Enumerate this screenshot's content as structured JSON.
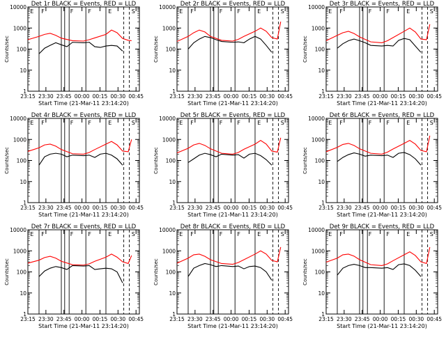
{
  "chart_data": [
    {
      "type": "line",
      "title": "Det 1r BLACK = Events, RED = LLD",
      "xlabel": "Start Time (21-Mar-11 23:14:20)",
      "ylabel": "Counts/sec",
      "yscale": "log",
      "ylim": [
        1,
        10000
      ],
      "xticks": [
        "23:15",
        "23:30",
        "23:45",
        "00:00",
        "00:15",
        "00:30",
        "00:45"
      ],
      "ytick_labels": [
        "1",
        "10",
        "100",
        "1000",
        "10000"
      ],
      "markers": [
        "E",
        "F",
        "F",
        "F",
        "E",
        "S"
      ],
      "series": [
        {
          "color": "#ff0000",
          "x": [
            0,
            0.1,
            0.15,
            0.2,
            0.25,
            0.3,
            0.4,
            0.5,
            0.55,
            0.6,
            0.7,
            0.75,
            0.8,
            0.85,
            0.9,
            0.93
          ],
          "y": [
            280,
            400,
            500,
            560,
            450,
            330,
            250,
            240,
            280,
            340,
            500,
            800,
            600,
            320,
            260,
            250
          ]
        },
        {
          "color": "#000000",
          "x": [
            0.1,
            0.15,
            0.2,
            0.25,
            0.3,
            0.35,
            0.4,
            0.5,
            0.55,
            0.6,
            0.65,
            0.7,
            0.75,
            0.8,
            0.85
          ],
          "y": [
            60,
            110,
            150,
            200,
            160,
            130,
            210,
            200,
            210,
            130,
            120,
            140,
            150,
            140,
            80
          ]
        }
      ]
    },
    {
      "type": "line",
      "title": "Det 2r BLACK = Events, RED = LLD",
      "xlabel": "Start Time (21-Mar-11 23:14:20)",
      "ylabel": "Counts/sec",
      "yscale": "log",
      "ylim": [
        1,
        10000
      ],
      "xticks": [
        "23:15",
        "23:30",
        "23:45",
        "00:00",
        "00:15",
        "00:30",
        "00:45"
      ],
      "ytick_labels": [
        "1",
        "10",
        "100",
        "1000",
        "10000"
      ],
      "markers": [
        "E",
        "F",
        "F",
        "F",
        "E",
        "S"
      ],
      "series": [
        {
          "color": "#ff0000",
          "x": [
            0,
            0.1,
            0.15,
            0.2,
            0.25,
            0.3,
            0.4,
            0.5,
            0.55,
            0.6,
            0.7,
            0.75,
            0.8,
            0.85,
            0.9,
            0.93
          ],
          "y": [
            230,
            400,
            600,
            800,
            650,
            400,
            260,
            240,
            290,
            400,
            700,
            1000,
            700,
            350,
            300,
            2000
          ]
        },
        {
          "color": "#000000",
          "x": [
            0.1,
            0.15,
            0.2,
            0.25,
            0.3,
            0.35,
            0.4,
            0.5,
            0.55,
            0.6,
            0.65,
            0.7,
            0.75,
            0.8,
            0.85
          ],
          "y": [
            100,
            200,
            300,
            400,
            350,
            280,
            230,
            210,
            220,
            200,
            300,
            400,
            300,
            150,
            70
          ]
        }
      ]
    },
    {
      "type": "line",
      "title": "Det 3r BLACK = Events, RED = LLD",
      "xlabel": "Start Time (21-Mar-11 23:14:20)",
      "ylabel": "Counts/sec",
      "yscale": "log",
      "ylim": [
        1,
        10000
      ],
      "xticks": [
        "23:15",
        "23:30",
        "23:45",
        "00:00",
        "00:15",
        "00:30",
        "00:45"
      ],
      "ytick_labels": [
        "1",
        "10",
        "100",
        "1000",
        "10000"
      ],
      "markers": [
        "E",
        "F",
        "F",
        "F",
        "E",
        "S"
      ],
      "series": [
        {
          "color": "#ff0000",
          "x": [
            0,
            0.1,
            0.15,
            0.2,
            0.25,
            0.3,
            0.4,
            0.5,
            0.55,
            0.6,
            0.7,
            0.75,
            0.8,
            0.85,
            0.9,
            0.93
          ],
          "y": [
            250,
            450,
            600,
            700,
            550,
            380,
            220,
            200,
            250,
            350,
            700,
            1000,
            650,
            300,
            280,
            1500
          ]
        },
        {
          "color": "#000000",
          "x": [
            0.1,
            0.15,
            0.2,
            0.25,
            0.3,
            0.35,
            0.4,
            0.5,
            0.55,
            0.6,
            0.65,
            0.7,
            0.75,
            0.8,
            0.85
          ],
          "y": [
            110,
            180,
            250,
            300,
            250,
            200,
            150,
            140,
            150,
            140,
            260,
            320,
            280,
            140,
            70
          ]
        }
      ]
    },
    {
      "type": "line",
      "title": "Det 4r BLACK = Events, RED = LLD",
      "xlabel": "Start Time (21-Mar-11 23:14:20)",
      "ylabel": "Counts/sec",
      "yscale": "log",
      "ylim": [
        1,
        10000
      ],
      "xticks": [
        "23:15",
        "23:30",
        "23:45",
        "00:00",
        "00:15",
        "00:30",
        "00:45"
      ],
      "ytick_labels": [
        "1",
        "10",
        "100",
        "1000",
        "10000"
      ],
      "markers": [
        "E",
        "F",
        "F",
        "F",
        "E",
        "S"
      ],
      "series": [
        {
          "color": "#ff0000",
          "x": [
            0,
            0.1,
            0.15,
            0.2,
            0.25,
            0.3,
            0.4,
            0.5,
            0.55,
            0.6,
            0.7,
            0.75,
            0.8,
            0.85,
            0.9,
            0.93
          ],
          "y": [
            270,
            400,
            550,
            600,
            480,
            330,
            210,
            200,
            240,
            330,
            600,
            800,
            550,
            280,
            260,
            1000
          ]
        },
        {
          "color": "#000000",
          "x": [
            0.1,
            0.15,
            0.2,
            0.25,
            0.3,
            0.35,
            0.4,
            0.5,
            0.55,
            0.6,
            0.65,
            0.7,
            0.75,
            0.8,
            0.85
          ],
          "y": [
            60,
            150,
            200,
            220,
            200,
            150,
            180,
            170,
            180,
            140,
            200,
            220,
            180,
            120,
            60
          ]
        }
      ]
    },
    {
      "type": "line",
      "title": "Det 5r BLACK = Events, RED = LLD",
      "xlabel": "Start Time (21-Mar-11 23:14:20)",
      "ylabel": "Counts/sec",
      "yscale": "log",
      "ylim": [
        1,
        10000
      ],
      "xticks": [
        "23:15",
        "23:30",
        "23:45",
        "00:00",
        "00:15",
        "00:30",
        "00:45"
      ],
      "ytick_labels": [
        "1",
        "10",
        "100",
        "1000",
        "10000"
      ],
      "markers": [
        "E",
        "F",
        "F",
        "F",
        "E",
        "S"
      ],
      "series": [
        {
          "color": "#ff0000",
          "x": [
            0,
            0.1,
            0.15,
            0.2,
            0.25,
            0.3,
            0.4,
            0.5,
            0.55,
            0.6,
            0.7,
            0.75,
            0.8,
            0.85,
            0.9,
            0.93
          ],
          "y": [
            230,
            380,
            550,
            650,
            520,
            360,
            220,
            200,
            240,
            340,
            600,
            900,
            600,
            280,
            250,
            1200
          ]
        },
        {
          "color": "#000000",
          "x": [
            0.1,
            0.15,
            0.2,
            0.25,
            0.3,
            0.35,
            0.4,
            0.5,
            0.55,
            0.6,
            0.65,
            0.7,
            0.75,
            0.8,
            0.85
          ],
          "y": [
            80,
            120,
            180,
            220,
            190,
            150,
            200,
            180,
            190,
            130,
            200,
            220,
            170,
            110,
            60
          ]
        }
      ]
    },
    {
      "type": "line",
      "title": "Det 6r BLACK = Events, RED = LLD",
      "xlabel": "Start Time (21-Mar-11 23:14:20)",
      "ylabel": "Counts/sec",
      "yscale": "log",
      "ylim": [
        1,
        10000
      ],
      "xticks": [
        "23:15",
        "23:30",
        "23:45",
        "00:00",
        "00:15",
        "00:30",
        "00:45"
      ],
      "ytick_labels": [
        "1",
        "10",
        "100",
        "1000",
        "10000"
      ],
      "markers": [
        "E",
        "F",
        "F",
        "F",
        "E",
        "S"
      ],
      "series": [
        {
          "color": "#ff0000",
          "x": [
            0,
            0.1,
            0.15,
            0.2,
            0.25,
            0.3,
            0.4,
            0.5,
            0.55,
            0.6,
            0.7,
            0.75,
            0.8,
            0.85,
            0.9,
            0.93
          ],
          "y": [
            260,
            420,
            580,
            650,
            520,
            360,
            220,
            200,
            250,
            350,
            650,
            900,
            600,
            300,
            260,
            1500
          ]
        },
        {
          "color": "#000000",
          "x": [
            0.1,
            0.15,
            0.2,
            0.25,
            0.3,
            0.35,
            0.4,
            0.5,
            0.55,
            0.6,
            0.65,
            0.7,
            0.75,
            0.8,
            0.85
          ],
          "y": [
            90,
            140,
            190,
            230,
            200,
            160,
            180,
            170,
            180,
            140,
            220,
            240,
            190,
            120,
            60
          ]
        }
      ]
    },
    {
      "type": "line",
      "title": "Det 7r BLACK = Events, RED = LLD",
      "xlabel": "Start Time (21-Mar-11 23:14:20)",
      "ylabel": "Counts/sec",
      "yscale": "log",
      "ylim": [
        1,
        10000
      ],
      "xticks": [
        "23:15",
        "23:30",
        "23:45",
        "00:00",
        "00:15",
        "00:30",
        "00:45"
      ],
      "ytick_labels": [
        "1",
        "10",
        "100",
        "1000",
        "10000"
      ],
      "markers": [
        "E",
        "F",
        "F",
        "F",
        "E",
        "S"
      ],
      "series": [
        {
          "color": "#ff0000",
          "x": [
            0,
            0.1,
            0.15,
            0.2,
            0.25,
            0.3,
            0.4,
            0.5,
            0.55,
            0.6,
            0.7,
            0.75,
            0.8,
            0.85,
            0.9,
            0.93
          ],
          "y": [
            260,
            360,
            480,
            550,
            450,
            320,
            220,
            210,
            240,
            320,
            500,
            700,
            500,
            300,
            250,
            600
          ]
        },
        {
          "color": "#000000",
          "x": [
            0.1,
            0.15,
            0.2,
            0.25,
            0.3,
            0.35,
            0.4,
            0.5,
            0.55,
            0.6,
            0.65,
            0.7,
            0.75,
            0.8,
            0.85
          ],
          "y": [
            60,
            110,
            150,
            180,
            160,
            130,
            200,
            190,
            200,
            130,
            140,
            150,
            140,
            100,
            30
          ]
        }
      ]
    },
    {
      "type": "line",
      "title": "Det 8r BLACK = Events, RED = LLD",
      "xlabel": "Start Time (21-Mar-11 23:14:20)",
      "ylabel": "Counts/sec",
      "yscale": "log",
      "ylim": [
        1,
        10000
      ],
      "xticks": [
        "23:15",
        "23:30",
        "23:45",
        "00:00",
        "00:15",
        "00:30",
        "00:45"
      ],
      "ytick_labels": [
        "1",
        "10",
        "100",
        "1000",
        "10000"
      ],
      "markers": [
        "E",
        "F",
        "F",
        "F",
        "E",
        "S"
      ],
      "series": [
        {
          "color": "#ff0000",
          "x": [
            0,
            0.1,
            0.15,
            0.2,
            0.25,
            0.3,
            0.4,
            0.5,
            0.55,
            0.6,
            0.7,
            0.75,
            0.8,
            0.85,
            0.9,
            0.93
          ],
          "y": [
            260,
            450,
            650,
            700,
            550,
            380,
            250,
            230,
            280,
            380,
            700,
            1000,
            700,
            350,
            300,
            1500
          ]
        },
        {
          "color": "#000000",
          "x": [
            0.1,
            0.15,
            0.2,
            0.25,
            0.3,
            0.35,
            0.4,
            0.5,
            0.55,
            0.6,
            0.65,
            0.7,
            0.75,
            0.8,
            0.85
          ],
          "y": [
            60,
            150,
            200,
            250,
            220,
            180,
            200,
            180,
            190,
            140,
            180,
            190,
            160,
            100,
            40
          ]
        }
      ]
    },
    {
      "type": "line",
      "title": "Det 9r BLACK = Events, RED = LLD",
      "xlabel": "Start Time (21-Mar-11 23:14:20)",
      "ylabel": "Counts/sec",
      "yscale": "log",
      "ylim": [
        1,
        10000
      ],
      "xticks": [
        "23:15",
        "23:30",
        "23:45",
        "00:00",
        "00:15",
        "00:30",
        "00:45"
      ],
      "ytick_labels": [
        "1",
        "10",
        "100",
        "1000",
        "10000"
      ],
      "markers": [
        "E",
        "F",
        "F",
        "F",
        "E",
        "S"
      ],
      "series": [
        {
          "color": "#ff0000",
          "x": [
            0,
            0.1,
            0.15,
            0.2,
            0.25,
            0.3,
            0.4,
            0.5,
            0.55,
            0.6,
            0.7,
            0.75,
            0.8,
            0.85,
            0.9,
            0.93
          ],
          "y": [
            290,
            450,
            650,
            700,
            560,
            380,
            220,
            200,
            240,
            340,
            650,
            900,
            600,
            300,
            250,
            1500
          ]
        },
        {
          "color": "#000000",
          "x": [
            0.1,
            0.15,
            0.2,
            0.25,
            0.3,
            0.35,
            0.4,
            0.5,
            0.55,
            0.6,
            0.65,
            0.7,
            0.75,
            0.8,
            0.85
          ],
          "y": [
            70,
            150,
            200,
            230,
            200,
            160,
            160,
            150,
            160,
            130,
            220,
            240,
            200,
            120,
            60
          ]
        }
      ]
    }
  ]
}
